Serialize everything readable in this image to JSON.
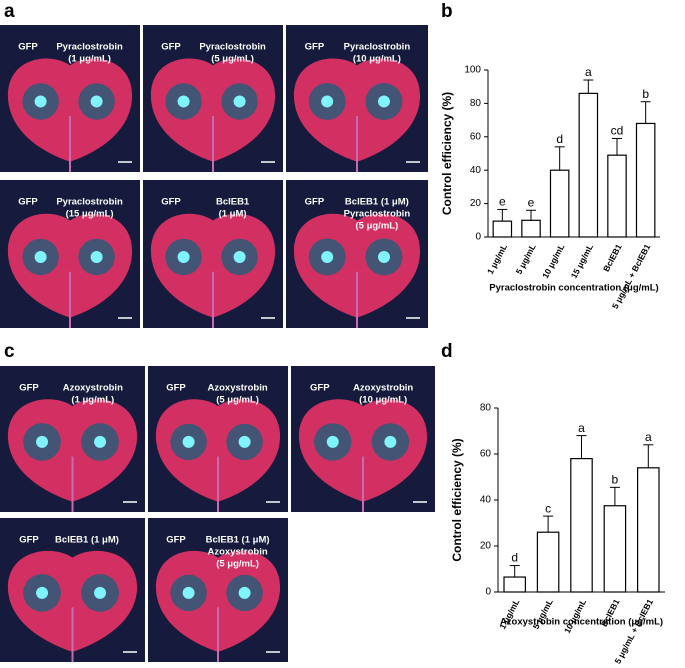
{
  "panel_letters": [
    "a",
    "b",
    "c",
    "d"
  ],
  "photos": [
    {
      "left": "GFP",
      "right": [
        "Pyraclostrobin",
        "(1 μg/mL)"
      ]
    },
    {
      "left": "GFP",
      "right": [
        "Pyraclostrobin",
        "(5 μg/mL)"
      ]
    },
    {
      "left": "GFP",
      "right": [
        "Pyraclostrobin",
        "(10 μg/mL)"
      ]
    },
    {
      "left": "GFP",
      "right": [
        "Pyraclostrobin",
        "(15 μg/mL)"
      ]
    },
    {
      "left": "GFP",
      "right": [
        "BcIEB1",
        "(1 μM)"
      ]
    },
    {
      "left": "GFP",
      "right": [
        "BcIEB1 (1 μM)",
        "Pyraclostrobin",
        "(5 μg/mL)"
      ]
    },
    {
      "left": "GFP",
      "right": [
        "Azoxystrobin",
        "(1 μg/mL)"
      ]
    },
    {
      "left": "GFP",
      "right": [
        "Azoxystrobin",
        "(5 μg/mL)"
      ]
    },
    {
      "left": "GFP",
      "right": [
        "Azoxystrobin",
        "(10 μg/mL)"
      ]
    },
    {
      "left": "GFP",
      "right": [
        "BcIEB1 (1 μM)"
      ]
    },
    {
      "left": "GFP",
      "right": [
        "BcIEB1 (1 μM)",
        "Azoxystrobin",
        "(5 μg/mL)"
      ]
    }
  ],
  "chart_data": [
    {
      "type": "bar",
      "x_label": "Pyraclostrobin concentration (μg/mL)",
      "y_label": "Control efficiency (%)",
      "categories": [
        "1 μg/mL",
        "5 μg/mL",
        "10 μg/mL",
        "15 μg/mL",
        "BcIEB1",
        "5 μg/mL + BcIEB1"
      ],
      "values": [
        9.5,
        10,
        40,
        86,
        49,
        68
      ],
      "errors": [
        7,
        6,
        14,
        8,
        10,
        13
      ],
      "significance": [
        "e",
        "e",
        "d",
        "a",
        "cd",
        "b"
      ],
      "color": "#ffffff",
      "edgecolor": "#000000",
      "ylim": [
        0,
        100
      ],
      "yticks": [
        0,
        20,
        40,
        60,
        80,
        100
      ]
    },
    {
      "type": "bar",
      "x_label": "Azoxystrobin concentration (μg/mL)",
      "y_label": "Control efficiency (%)",
      "categories": [
        "1 μg/mL",
        "5 μg/mL",
        "10 μg/mL",
        "BcIEB1",
        "5 μg/mL + BcIEB1"
      ],
      "values": [
        6.5,
        26,
        58,
        37.5,
        54
      ],
      "errors": [
        5,
        7,
        10,
        8,
        10
      ],
      "significance": [
        "d",
        "c",
        "a",
        "b",
        "a"
      ],
      "color": "#ffffff",
      "edgecolor": "#000000",
      "ylim": [
        0,
        80
      ],
      "yticks": [
        0,
        20,
        40,
        60,
        80
      ]
    }
  ]
}
